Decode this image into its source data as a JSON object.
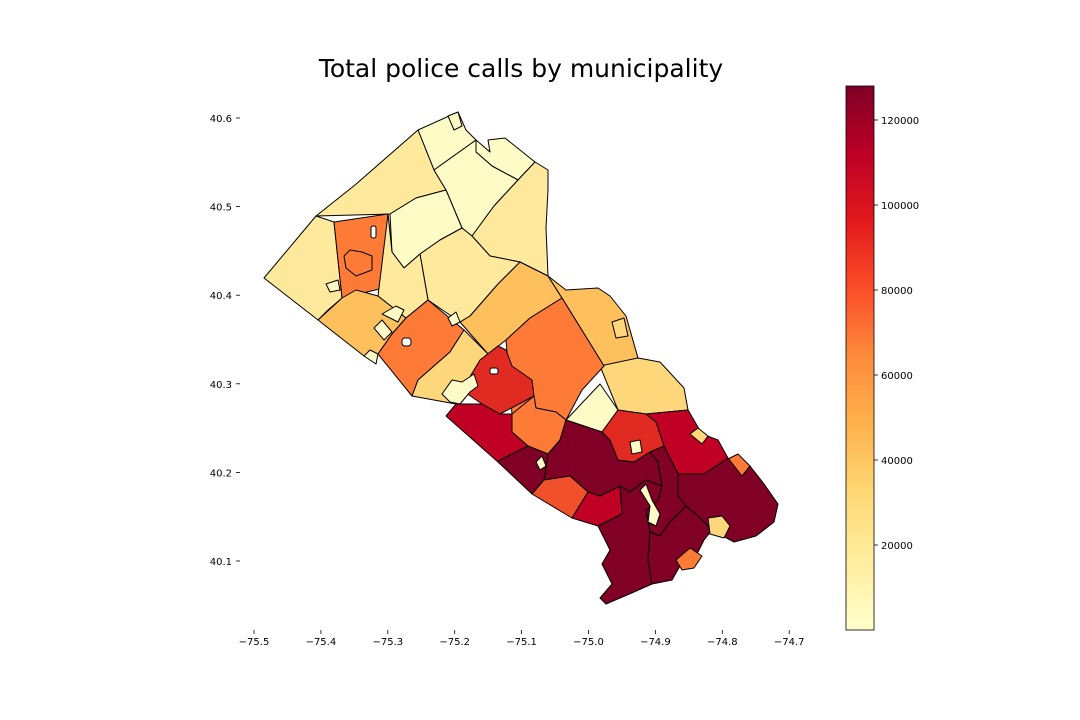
{
  "title": "Total police calls by municipality",
  "map": {
    "xlabel": "",
    "ylabel": "",
    "x_ticks": [
      "−75.5",
      "−75.4",
      "−75.3",
      "−75.2",
      "−75.1",
      "−75.0",
      "−74.9",
      "−74.8",
      "−74.7"
    ],
    "y_ticks": [
      "40.1",
      "40.2",
      "40.3",
      "40.4",
      "40.5",
      "40.6"
    ],
    "colorbar": {
      "colormap": "YlOrRd",
      "min": 0,
      "max": 128000,
      "ticks": [
        "20000",
        "40000",
        "60000",
        "80000",
        "100000",
        "120000"
      ],
      "colors": [
        "#ffffcc",
        "#ffeda0",
        "#fed976",
        "#feb24c",
        "#fd8d3c",
        "#fc4e2a",
        "#e31a1c",
        "#bd0026",
        "#800026"
      ]
    },
    "fill_colors": {
      "very_low": "#fffbc6",
      "low": "#ffe99d",
      "low_mid": "#fed77a",
      "mid": "#fec05c",
      "mid_high": "#fd7b36",
      "high": "#f0502a",
      "very_high": "#e02a22",
      "top": "#c10026",
      "max": "#800026"
    }
  }
}
